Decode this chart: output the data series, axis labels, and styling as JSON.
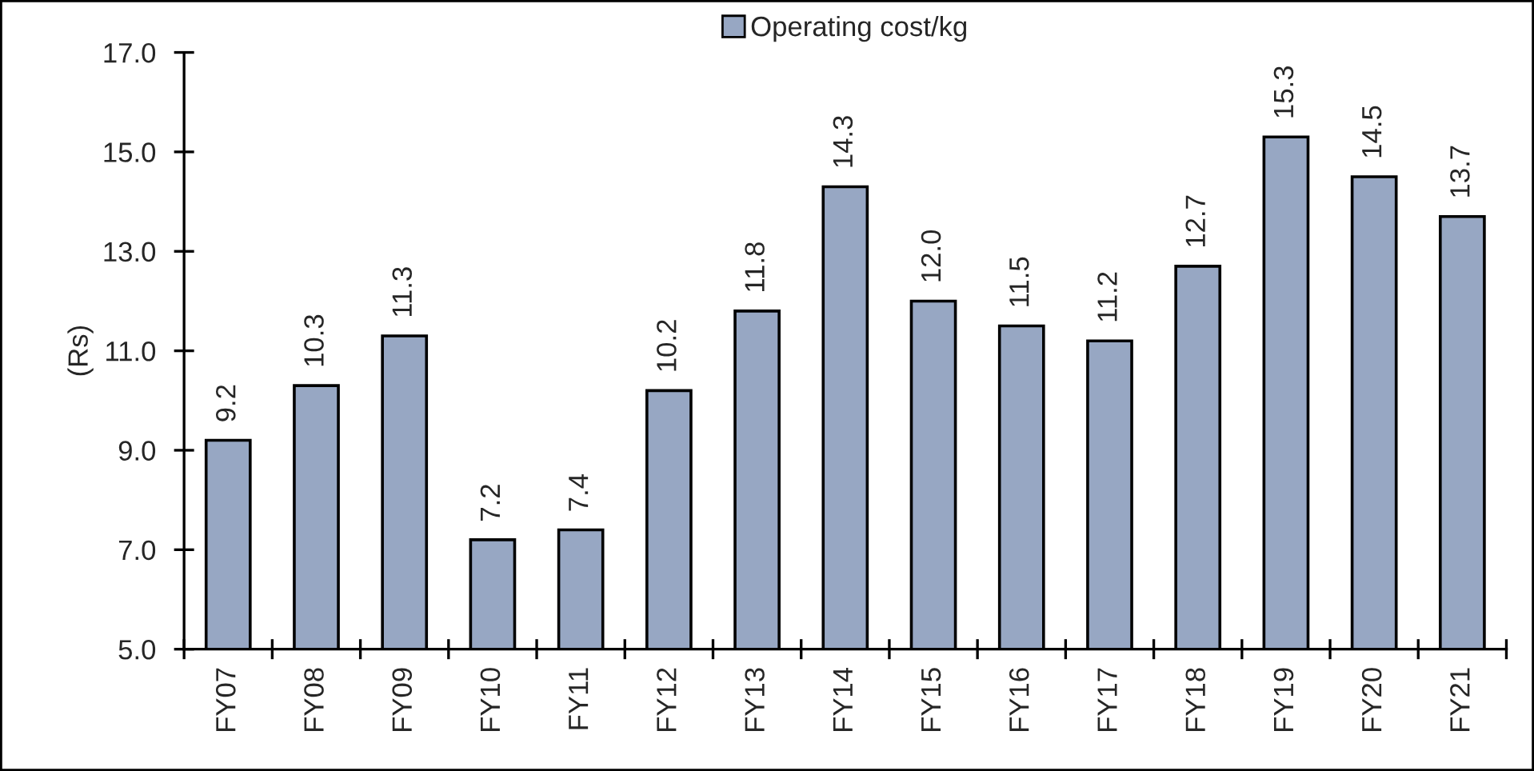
{
  "chart_data": {
    "type": "bar",
    "categories": [
      "FY07",
      "FY08",
      "FY09",
      "FY10",
      "FY11",
      "FY12",
      "FY13",
      "FY14",
      "FY15",
      "FY16",
      "FY17",
      "FY18",
      "FY19",
      "FY20",
      "FY21"
    ],
    "series": [
      {
        "name": "Operating cost/kg",
        "color": "#97a7c3",
        "values": [
          9.2,
          10.3,
          11.3,
          7.2,
          7.4,
          10.2,
          11.8,
          14.3,
          12.0,
          11.5,
          11.2,
          12.7,
          15.3,
          14.5,
          13.7
        ],
        "value_labels": [
          "9.2",
          "10.3",
          "11.3",
          "7.2",
          "7.4",
          "10.2",
          "11.8",
          "14.3",
          "12.0",
          "11.5",
          "11.2",
          "12.7",
          "15.3",
          "14.5",
          "13.7"
        ]
      }
    ],
    "ylabel": "(Rs)",
    "ylim": [
      5,
      17
    ],
    "yticks": [
      {
        "value": 5,
        "label": "5.0"
      },
      {
        "value": 7,
        "label": "7.0"
      },
      {
        "value": 9,
        "label": "9.0"
      },
      {
        "value": 11,
        "label": "11.0"
      },
      {
        "value": 13,
        "label": "13.0"
      },
      {
        "value": 15,
        "label": "15.0"
      },
      {
        "value": 17,
        "label": "17.0"
      }
    ],
    "legend": "top"
  }
}
